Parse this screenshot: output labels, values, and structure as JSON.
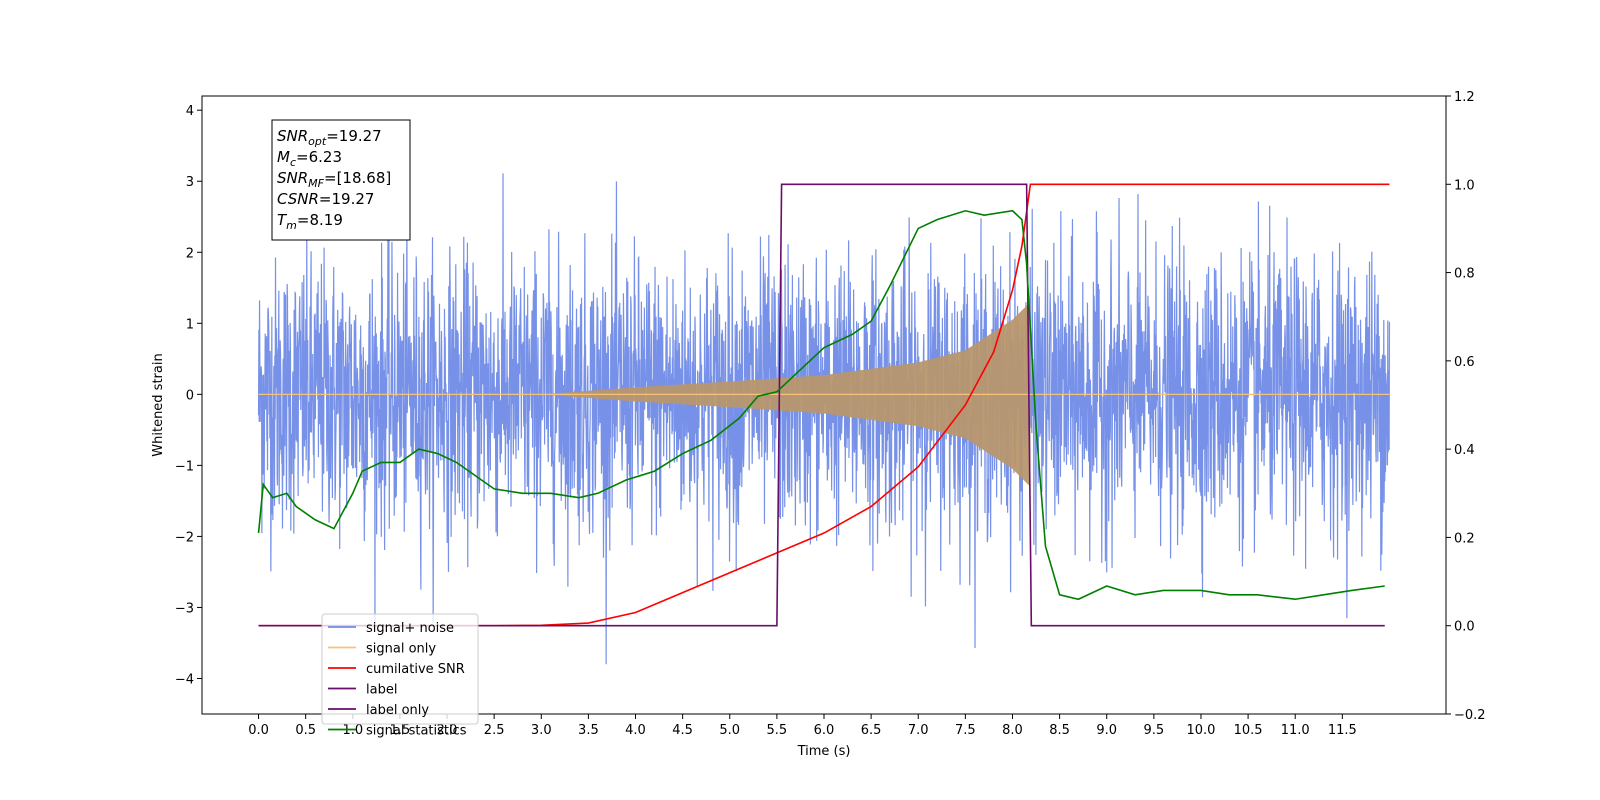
{
  "chart_data": {
    "type": "line",
    "xlabel": "Time (s)",
    "ylabel_left": "Whitened strain",
    "ylabel_right": "",
    "xlim": [
      -0.6,
      12.6
    ],
    "ylim_left": [
      -4.5,
      4.2
    ],
    "ylim_right": [
      -0.2,
      1.2
    ],
    "x_ticks": [
      0.0,
      0.5,
      1.0,
      1.5,
      2.0,
      2.5,
      3.0,
      3.5,
      4.0,
      4.5,
      5.0,
      5.5,
      6.0,
      6.5,
      7.0,
      7.5,
      8.0,
      8.5,
      9.0,
      9.5,
      10.0,
      10.5,
      11.0,
      11.5
    ],
    "x_tick_labels": [
      "0.0",
      "0.5",
      "1.0",
      "1.5",
      "2.0",
      "2.5",
      "3.0",
      "3.5",
      "4.0",
      "4.5",
      "5.0",
      "5.5",
      "6.0",
      "6.5",
      "7.0",
      "7.5",
      "8.0",
      "8.5",
      "9.0",
      "9.5",
      "10.0",
      "10.5",
      "11.0",
      "11.5"
    ],
    "y_left_ticks": [
      -4,
      -3,
      -2,
      -1,
      0,
      1,
      2,
      3,
      4
    ],
    "y_left_tick_labels": [
      "−4",
      "−3",
      "−2",
      "−1",
      "0",
      "1",
      "2",
      "3",
      "4"
    ],
    "y_right_ticks": [
      -0.2,
      0.0,
      0.2,
      0.4,
      0.6,
      0.8,
      1.0,
      1.2
    ],
    "y_right_tick_labels": [
      "−0.2",
      "0.0",
      "0.2",
      "0.4",
      "0.6",
      "0.8",
      "1.0",
      "1.2"
    ],
    "grid": false,
    "legend_position": "lower-left",
    "legend": [
      {
        "name": "signal+ noise",
        "color": "#6f8be6"
      },
      {
        "name": "signal only",
        "color": "#f6c27a"
      },
      {
        "name": "cumilative SNR",
        "color": "#ff0000"
      },
      {
        "name": "label",
        "color": "#6a0d6a"
      },
      {
        "name": "label only",
        "color": "#6a0d6a"
      },
      {
        "name": "signal statistics",
        "color": "#008000"
      }
    ],
    "stats_box": [
      {
        "label": "SNR",
        "sub": "opt",
        "value": "=19.27"
      },
      {
        "label": "M",
        "sub": "c",
        "value": "=6.23"
      },
      {
        "label": "SNR",
        "sub": "MF",
        "value": "=[18.68]"
      },
      {
        "label": "CSNR",
        "sub": "",
        "value": "=19.27"
      },
      {
        "label": "T",
        "sub": "m",
        "value": "=8.19"
      }
    ],
    "noise": {
      "x_start": 0.0,
      "x_end": 12.0,
      "typical_amplitude": 2.0,
      "peak_amplitude": 3.8,
      "color": "#6f8be6"
    },
    "chirp": {
      "x_start": 3.0,
      "x_end": 8.19,
      "envelope": [
        {
          "x": 3.0,
          "y": 0.0
        },
        {
          "x": 4.0,
          "y": 0.1
        },
        {
          "x": 5.0,
          "y": 0.18
        },
        {
          "x": 6.0,
          "y": 0.27
        },
        {
          "x": 7.0,
          "y": 0.45
        },
        {
          "x": 7.5,
          "y": 0.62
        },
        {
          "x": 8.0,
          "y": 1.05
        },
        {
          "x": 8.19,
          "y": 1.3
        }
      ],
      "color": "#f6c27a",
      "overlap_color": "#b8976e"
    },
    "series": [
      {
        "name": "cumilative SNR",
        "axis": "right",
        "color": "#ff0000",
        "points": [
          [
            0,
            0
          ],
          [
            2.5,
            0
          ],
          [
            3.0,
            0.001
          ],
          [
            3.5,
            0.006
          ],
          [
            4.0,
            0.03
          ],
          [
            4.5,
            0.075
          ],
          [
            5.0,
            0.12
          ],
          [
            5.5,
            0.165
          ],
          [
            6.0,
            0.21
          ],
          [
            6.5,
            0.27
          ],
          [
            7.0,
            0.36
          ],
          [
            7.5,
            0.5
          ],
          [
            7.8,
            0.62
          ],
          [
            8.0,
            0.76
          ],
          [
            8.1,
            0.86
          ],
          [
            8.19,
            1.0
          ],
          [
            12.0,
            1.0
          ]
        ]
      },
      {
        "name": "label",
        "axis": "right",
        "color": "#6a0d6a",
        "points": [
          [
            0,
            0
          ],
          [
            5.5,
            0
          ],
          [
            5.55,
            1.0
          ],
          [
            8.15,
            1.0
          ],
          [
            8.2,
            0
          ],
          [
            11.95,
            0
          ]
        ]
      },
      {
        "name": "signal statistics",
        "axis": "right",
        "color": "#008000",
        "points": [
          [
            0,
            0.21
          ],
          [
            0.05,
            0.32
          ],
          [
            0.15,
            0.29
          ],
          [
            0.3,
            0.3
          ],
          [
            0.4,
            0.27
          ],
          [
            0.6,
            0.24
          ],
          [
            0.8,
            0.22
          ],
          [
            1.0,
            0.3
          ],
          [
            1.1,
            0.35
          ],
          [
            1.3,
            0.37
          ],
          [
            1.5,
            0.37
          ],
          [
            1.7,
            0.4
          ],
          [
            1.9,
            0.39
          ],
          [
            2.1,
            0.37
          ],
          [
            2.3,
            0.34
          ],
          [
            2.5,
            0.31
          ],
          [
            2.8,
            0.3
          ],
          [
            3.1,
            0.3
          ],
          [
            3.4,
            0.29
          ],
          [
            3.6,
            0.3
          ],
          [
            3.9,
            0.33
          ],
          [
            4.2,
            0.35
          ],
          [
            4.5,
            0.39
          ],
          [
            4.8,
            0.42
          ],
          [
            5.1,
            0.47
          ],
          [
            5.3,
            0.52
          ],
          [
            5.5,
            0.53
          ],
          [
            5.7,
            0.57
          ],
          [
            6.0,
            0.63
          ],
          [
            6.3,
            0.66
          ],
          [
            6.5,
            0.69
          ],
          [
            6.7,
            0.77
          ],
          [
            7.0,
            0.9
          ],
          [
            7.2,
            0.92
          ],
          [
            7.5,
            0.94
          ],
          [
            7.7,
            0.93
          ],
          [
            8.0,
            0.94
          ],
          [
            8.1,
            0.92
          ],
          [
            8.15,
            0.82
          ],
          [
            8.25,
            0.45
          ],
          [
            8.35,
            0.18
          ],
          [
            8.5,
            0.07
          ],
          [
            8.7,
            0.06
          ],
          [
            9.0,
            0.09
          ],
          [
            9.3,
            0.07
          ],
          [
            9.6,
            0.08
          ],
          [
            10.0,
            0.08
          ],
          [
            10.3,
            0.07
          ],
          [
            10.6,
            0.07
          ],
          [
            11.0,
            0.06
          ],
          [
            11.3,
            0.07
          ],
          [
            11.6,
            0.08
          ],
          [
            11.95,
            0.09
          ]
        ]
      }
    ]
  }
}
